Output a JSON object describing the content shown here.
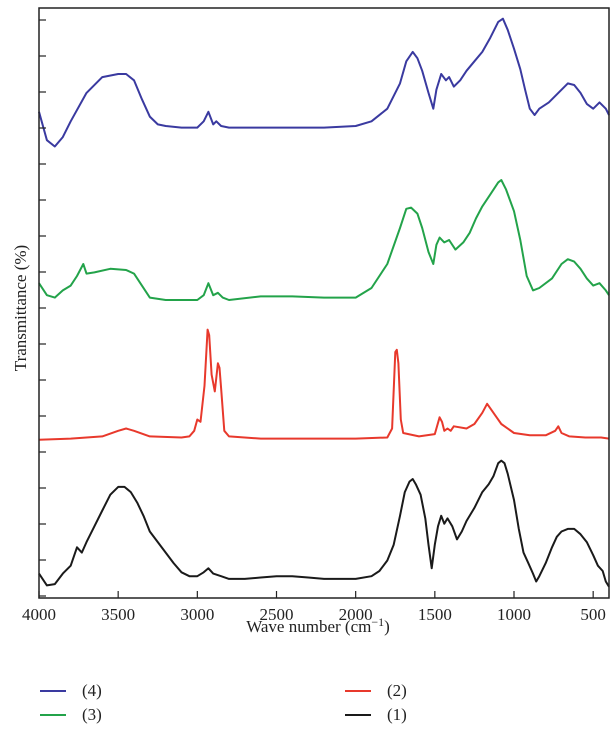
{
  "chart_data": {
    "type": "line",
    "xlabel": "Wave number (cm",
    "xlabel_sup": "−1",
    "xlabel_end": ")",
    "ylabel": "Transmittance (%)",
    "xlim": [
      4000,
      400
    ],
    "x_ticks": [
      "4000",
      "3500",
      "3000",
      "2500",
      "2000",
      "1500",
      "1000",
      "500"
    ],
    "x_tick_values": [
      4000,
      3500,
      3000,
      2500,
      2000,
      1500,
      1000,
      500
    ],
    "grid": false,
    "legend_position": "bottom",
    "series": [
      {
        "name": "(4)",
        "color": "#3a3aa0",
        "points": [
          [
            4000,
            0.58
          ],
          [
            3950,
            0.4
          ],
          [
            3900,
            0.36
          ],
          [
            3850,
            0.42
          ],
          [
            3800,
            0.52
          ],
          [
            3700,
            0.7
          ],
          [
            3600,
            0.8
          ],
          [
            3500,
            0.82
          ],
          [
            3450,
            0.82
          ],
          [
            3400,
            0.78
          ],
          [
            3350,
            0.66
          ],
          [
            3300,
            0.55
          ],
          [
            3250,
            0.5
          ],
          [
            3200,
            0.49
          ],
          [
            3100,
            0.48
          ],
          [
            3000,
            0.48
          ],
          [
            2960,
            0.52
          ],
          [
            2930,
            0.58
          ],
          [
            2900,
            0.5
          ],
          [
            2880,
            0.52
          ],
          [
            2850,
            0.49
          ],
          [
            2800,
            0.48
          ],
          [
            2600,
            0.48
          ],
          [
            2400,
            0.48
          ],
          [
            2200,
            0.48
          ],
          [
            2000,
            0.49
          ],
          [
            1900,
            0.52
          ],
          [
            1800,
            0.6
          ],
          [
            1720,
            0.76
          ],
          [
            1680,
            0.9
          ],
          [
            1640,
            0.96
          ],
          [
            1610,
            0.92
          ],
          [
            1580,
            0.84
          ],
          [
            1540,
            0.7
          ],
          [
            1510,
            0.6
          ],
          [
            1490,
            0.72
          ],
          [
            1460,
            0.82
          ],
          [
            1430,
            0.78
          ],
          [
            1410,
            0.8
          ],
          [
            1380,
            0.74
          ],
          [
            1340,
            0.78
          ],
          [
            1300,
            0.84
          ],
          [
            1250,
            0.9
          ],
          [
            1200,
            0.96
          ],
          [
            1150,
            1.05
          ],
          [
            1100,
            1.15
          ],
          [
            1070,
            1.17
          ],
          [
            1040,
            1.1
          ],
          [
            1000,
            0.98
          ],
          [
            960,
            0.85
          ],
          [
            930,
            0.72
          ],
          [
            900,
            0.6
          ],
          [
            870,
            0.56
          ],
          [
            840,
            0.6
          ],
          [
            780,
            0.64
          ],
          [
            720,
            0.7
          ],
          [
            660,
            0.76
          ],
          [
            620,
            0.75
          ],
          [
            580,
            0.7
          ],
          [
            540,
            0.63
          ],
          [
            500,
            0.6
          ],
          [
            460,
            0.64
          ],
          [
            420,
            0.6
          ],
          [
            400,
            0.56
          ]
        ],
        "y_range": [
          0.3,
          1.2
        ]
      },
      {
        "name": "(3)",
        "color": "#23a34a",
        "points": [
          [
            4000,
            0.24
          ],
          [
            3950,
            0.14
          ],
          [
            3900,
            0.12
          ],
          [
            3850,
            0.18
          ],
          [
            3800,
            0.22
          ],
          [
            3760,
            0.3
          ],
          [
            3720,
            0.4
          ],
          [
            3700,
            0.32
          ],
          [
            3650,
            0.33
          ],
          [
            3550,
            0.36
          ],
          [
            3450,
            0.35
          ],
          [
            3400,
            0.32
          ],
          [
            3350,
            0.22
          ],
          [
            3300,
            0.12
          ],
          [
            3200,
            0.1
          ],
          [
            3100,
            0.1
          ],
          [
            3000,
            0.1
          ],
          [
            2960,
            0.14
          ],
          [
            2930,
            0.24
          ],
          [
            2900,
            0.14
          ],
          [
            2870,
            0.16
          ],
          [
            2840,
            0.12
          ],
          [
            2800,
            0.1
          ],
          [
            2600,
            0.13
          ],
          [
            2400,
            0.13
          ],
          [
            2200,
            0.12
          ],
          [
            2000,
            0.12
          ],
          [
            1900,
            0.2
          ],
          [
            1800,
            0.4
          ],
          [
            1720,
            0.7
          ],
          [
            1680,
            0.86
          ],
          [
            1650,
            0.87
          ],
          [
            1610,
            0.82
          ],
          [
            1580,
            0.7
          ],
          [
            1540,
            0.5
          ],
          [
            1510,
            0.4
          ],
          [
            1490,
            0.56
          ],
          [
            1470,
            0.62
          ],
          [
            1440,
            0.58
          ],
          [
            1410,
            0.6
          ],
          [
            1370,
            0.52
          ],
          [
            1320,
            0.58
          ],
          [
            1280,
            0.66
          ],
          [
            1240,
            0.78
          ],
          [
            1200,
            0.88
          ],
          [
            1150,
            0.98
          ],
          [
            1100,
            1.08
          ],
          [
            1080,
            1.1
          ],
          [
            1050,
            1.02
          ],
          [
            1000,
            0.84
          ],
          [
            960,
            0.6
          ],
          [
            920,
            0.3
          ],
          [
            880,
            0.18
          ],
          [
            840,
            0.2
          ],
          [
            760,
            0.28
          ],
          [
            700,
            0.4
          ],
          [
            660,
            0.44
          ],
          [
            620,
            0.42
          ],
          [
            580,
            0.36
          ],
          [
            540,
            0.28
          ],
          [
            500,
            0.22
          ],
          [
            460,
            0.24
          ],
          [
            420,
            0.18
          ],
          [
            400,
            0.14
          ]
        ],
        "y_range": [
          0.0,
          1.2
        ]
      },
      {
        "name": "(2)",
        "color": "#e8392c",
        "points": [
          [
            4000,
            0.02
          ],
          [
            3800,
            0.03
          ],
          [
            3600,
            0.05
          ],
          [
            3500,
            0.1
          ],
          [
            3450,
            0.12
          ],
          [
            3400,
            0.1
          ],
          [
            3300,
            0.05
          ],
          [
            3100,
            0.04
          ],
          [
            3050,
            0.05
          ],
          [
            3020,
            0.1
          ],
          [
            3000,
            0.2
          ],
          [
            2980,
            0.18
          ],
          [
            2955,
            0.5
          ],
          [
            2935,
            1.0
          ],
          [
            2925,
            0.95
          ],
          [
            2910,
            0.6
          ],
          [
            2890,
            0.45
          ],
          [
            2870,
            0.7
          ],
          [
            2860,
            0.66
          ],
          [
            2850,
            0.48
          ],
          [
            2830,
            0.1
          ],
          [
            2800,
            0.05
          ],
          [
            2600,
            0.03
          ],
          [
            2400,
            0.03
          ],
          [
            2200,
            0.03
          ],
          [
            2000,
            0.03
          ],
          [
            1800,
            0.04
          ],
          [
            1770,
            0.12
          ],
          [
            1750,
            0.8
          ],
          [
            1740,
            0.82
          ],
          [
            1730,
            0.7
          ],
          [
            1715,
            0.2
          ],
          [
            1700,
            0.08
          ],
          [
            1600,
            0.05
          ],
          [
            1500,
            0.07
          ],
          [
            1470,
            0.22
          ],
          [
            1455,
            0.18
          ],
          [
            1440,
            0.1
          ],
          [
            1420,
            0.12
          ],
          [
            1400,
            0.1
          ],
          [
            1380,
            0.14
          ],
          [
            1300,
            0.12
          ],
          [
            1250,
            0.16
          ],
          [
            1200,
            0.26
          ],
          [
            1170,
            0.34
          ],
          [
            1150,
            0.3
          ],
          [
            1110,
            0.22
          ],
          [
            1080,
            0.16
          ],
          [
            1000,
            0.08
          ],
          [
            900,
            0.06
          ],
          [
            800,
            0.06
          ],
          [
            740,
            0.1
          ],
          [
            720,
            0.14
          ],
          [
            700,
            0.08
          ],
          [
            650,
            0.05
          ],
          [
            550,
            0.04
          ],
          [
            450,
            0.04
          ],
          [
            400,
            0.03
          ]
        ],
        "y_range": [
          0.0,
          1.05
        ]
      },
      {
        "name": "(1)",
        "color": "#1a1a1a",
        "points": [
          [
            4000,
            0.14
          ],
          [
            3950,
            0.05
          ],
          [
            3900,
            0.06
          ],
          [
            3850,
            0.14
          ],
          [
            3800,
            0.2
          ],
          [
            3760,
            0.34
          ],
          [
            3730,
            0.3
          ],
          [
            3700,
            0.38
          ],
          [
            3650,
            0.5
          ],
          [
            3600,
            0.62
          ],
          [
            3550,
            0.74
          ],
          [
            3500,
            0.8
          ],
          [
            3460,
            0.8
          ],
          [
            3420,
            0.76
          ],
          [
            3380,
            0.68
          ],
          [
            3340,
            0.58
          ],
          [
            3300,
            0.46
          ],
          [
            3250,
            0.38
          ],
          [
            3200,
            0.3
          ],
          [
            3150,
            0.22
          ],
          [
            3100,
            0.15
          ],
          [
            3050,
            0.12
          ],
          [
            3000,
            0.12
          ],
          [
            2960,
            0.15
          ],
          [
            2930,
            0.18
          ],
          [
            2900,
            0.14
          ],
          [
            2850,
            0.12
          ],
          [
            2800,
            0.1
          ],
          [
            2700,
            0.1
          ],
          [
            2600,
            0.11
          ],
          [
            2500,
            0.12
          ],
          [
            2400,
            0.12
          ],
          [
            2300,
            0.11
          ],
          [
            2200,
            0.1
          ],
          [
            2100,
            0.1
          ],
          [
            2000,
            0.1
          ],
          [
            1900,
            0.12
          ],
          [
            1850,
            0.16
          ],
          [
            1800,
            0.24
          ],
          [
            1760,
            0.36
          ],
          [
            1720,
            0.58
          ],
          [
            1690,
            0.76
          ],
          [
            1660,
            0.84
          ],
          [
            1640,
            0.86
          ],
          [
            1620,
            0.82
          ],
          [
            1590,
            0.74
          ],
          [
            1560,
            0.56
          ],
          [
            1540,
            0.36
          ],
          [
            1520,
            0.18
          ],
          [
            1500,
            0.36
          ],
          [
            1480,
            0.5
          ],
          [
            1460,
            0.58
          ],
          [
            1440,
            0.52
          ],
          [
            1420,
            0.56
          ],
          [
            1390,
            0.5
          ],
          [
            1360,
            0.4
          ],
          [
            1330,
            0.46
          ],
          [
            1300,
            0.54
          ],
          [
            1250,
            0.64
          ],
          [
            1200,
            0.76
          ],
          [
            1160,
            0.82
          ],
          [
            1130,
            0.88
          ],
          [
            1100,
            0.98
          ],
          [
            1080,
            1.0
          ],
          [
            1060,
            0.98
          ],
          [
            1040,
            0.9
          ],
          [
            1000,
            0.7
          ],
          [
            970,
            0.48
          ],
          [
            940,
            0.3
          ],
          [
            910,
            0.22
          ],
          [
            880,
            0.14
          ],
          [
            860,
            0.08
          ],
          [
            840,
            0.12
          ],
          [
            800,
            0.22
          ],
          [
            760,
            0.34
          ],
          [
            730,
            0.42
          ],
          [
            700,
            0.46
          ],
          [
            660,
            0.48
          ],
          [
            620,
            0.48
          ],
          [
            580,
            0.44
          ],
          [
            540,
            0.38
          ],
          [
            500,
            0.28
          ],
          [
            470,
            0.2
          ],
          [
            440,
            0.16
          ],
          [
            420,
            0.08
          ],
          [
            400,
            0.04
          ]
        ],
        "y_range": [
          0.0,
          1.05
        ]
      }
    ]
  },
  "legend": {
    "items": [
      {
        "label": "(4)",
        "color": "#3a3aa0"
      },
      {
        "label": "(2)",
        "color": "#e8392c"
      },
      {
        "label": "(3)",
        "color": "#23a34a"
      },
      {
        "label": "(1)",
        "color": "#1a1a1a"
      }
    ]
  }
}
